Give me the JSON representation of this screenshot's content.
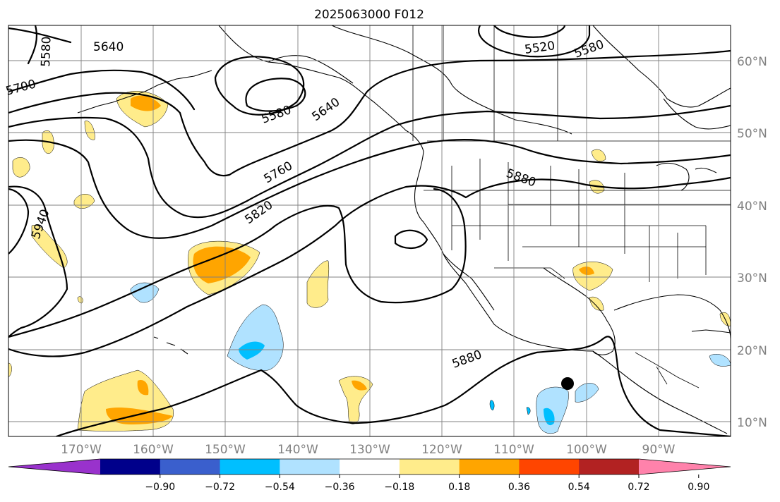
{
  "title": "2025063000 F012",
  "lat_labels": [
    "60°N",
    "50°N",
    "40°N",
    "30°N",
    "20°N",
    "10°N"
  ],
  "lon_labels": [
    "170°W",
    "160°W",
    "150°W",
    "140°W",
    "130°W",
    "120°W",
    "110°W",
    "100°W",
    "90°W"
  ],
  "contour_labels": [
    "5580",
    "5640",
    "5700",
    "5520",
    "5580",
    "5580",
    "5640",
    "5760",
    "5820",
    "5880",
    "5940",
    "5880"
  ],
  "colorbar": {
    "tick_labels": [
      "−0.90",
      "−0.72",
      "−0.54",
      "−0.36",
      "−0.18",
      "0.18",
      "0.36",
      "0.54",
      "0.72",
      "0.90"
    ],
    "colors": [
      "#9932cc",
      "#00008b",
      "#3a5fcd",
      "#00bfff",
      "#b0e2ff",
      "#ffffff",
      "#ffec8b",
      "#ffa500",
      "#ff4500",
      "#b22222",
      "#ff82ab"
    ]
  },
  "colors": {
    "gridline": "#808080",
    "contour": "#000000",
    "marker": "#000000"
  }
}
